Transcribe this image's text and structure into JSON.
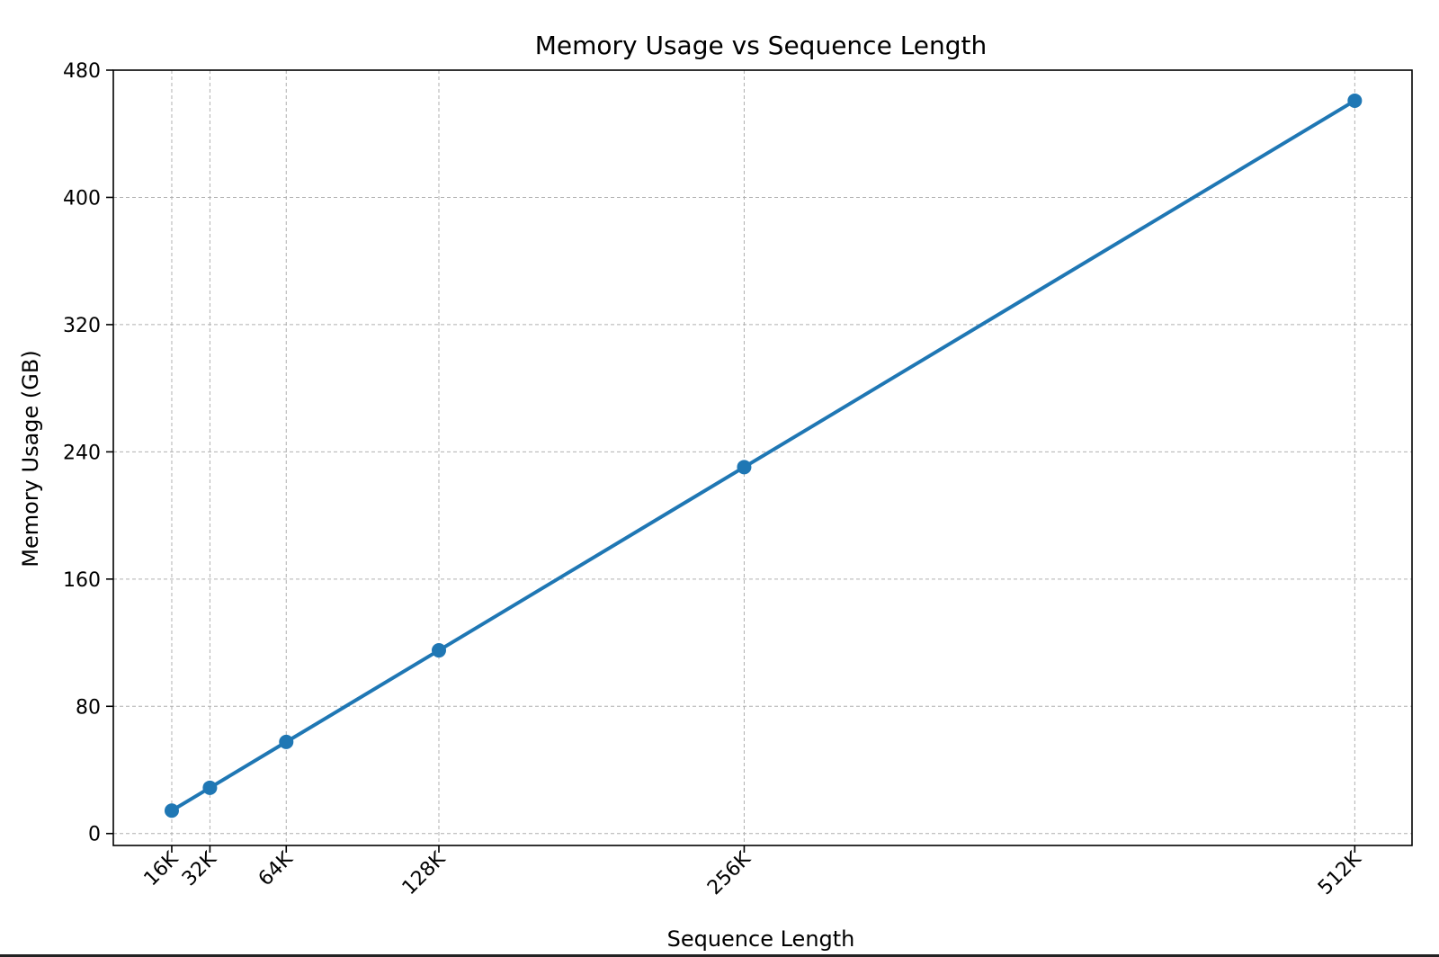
{
  "chart_data": {
    "type": "line",
    "title": "Memory Usage vs Sequence Length",
    "xlabel": "Sequence Length",
    "ylabel": "Memory Usage (GB)",
    "x": [
      16,
      32,
      64,
      128,
      256,
      512
    ],
    "xtick_labels": [
      "16K",
      "32K",
      "64K",
      "128K",
      "256K",
      "512K"
    ],
    "xlim": [
      -8.5,
      536
    ],
    "ylim": [
      -7.5,
      480
    ],
    "yticks": [
      0,
      80,
      160,
      240,
      320,
      400,
      480
    ],
    "grid": true,
    "series": [
      {
        "values": [
          14.4,
          28.8,
          57.6,
          115.2,
          230.4,
          460.8
        ]
      }
    ],
    "colors": {
      "line": "#1f77b4",
      "grid": "#b0b0b0",
      "axes": "#000000"
    }
  }
}
